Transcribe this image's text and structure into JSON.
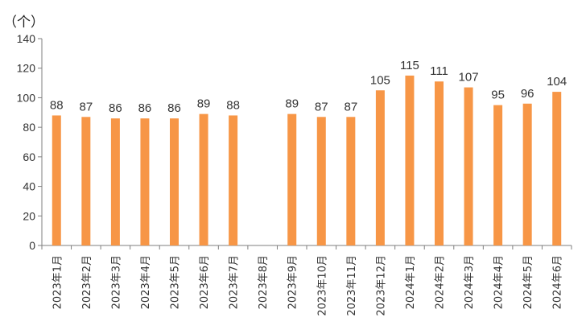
{
  "chart_data": {
    "type": "bar",
    "unit_label": "（个）",
    "categories": [
      "2023年1月",
      "2023年2月",
      "2023年3月",
      "2023年4月",
      "2023年5月",
      "2023年6月",
      "2023年7月",
      "2023年8月",
      "2023年9月",
      "2023年10月",
      "2023年11月",
      "2023年12月",
      "2024年1月",
      "2024年2月",
      "2024年3月",
      "2024年4月",
      "2024年5月",
      "2024年6月"
    ],
    "values": [
      88,
      87,
      86,
      86,
      86,
      89,
      88,
      null,
      89,
      87,
      87,
      105,
      115,
      111,
      107,
      95,
      96,
      104
    ],
    "ylim": [
      0,
      140
    ],
    "yticks": [
      0,
      20,
      40,
      60,
      80,
      100,
      120,
      140
    ],
    "bar_color": "#F79646",
    "grid": false,
    "legend": "none"
  }
}
